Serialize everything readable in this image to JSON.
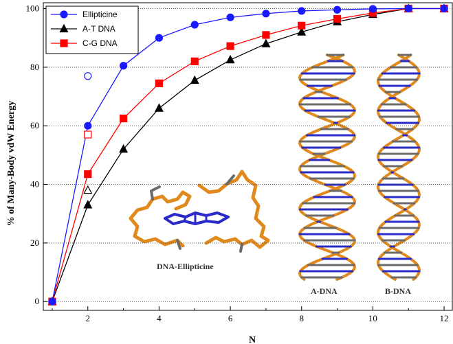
{
  "chart_data": {
    "type": "line",
    "title": "",
    "xlabel": "N",
    "ylabel": "% of Many-Body vdW Energy",
    "xlim": [
      0.75,
      12.25
    ],
    "ylim": [
      -3,
      102
    ],
    "xticks": [
      2,
      4,
      6,
      8,
      10,
      12
    ],
    "yticks": [
      0,
      20,
      40,
      60,
      80,
      100
    ],
    "grid": "horizontal dotted",
    "legend_position": "top-left",
    "x": [
      1,
      2,
      3,
      4,
      5,
      6,
      7,
      8,
      9,
      10,
      11,
      12
    ],
    "series": [
      {
        "name": "Ellipticine",
        "color": "#1a1aff",
        "marker": "circle",
        "values": [
          0,
          60,
          80.5,
          90,
          94.5,
          97,
          98.3,
          99.2,
          99.6,
          99.9,
          100,
          100
        ]
      },
      {
        "name": "A-T DNA",
        "color": "#000000",
        "marker": "triangle",
        "values": [
          0,
          33,
          52,
          66,
          75.5,
          82.5,
          88,
          92,
          95.5,
          98,
          100,
          100
        ]
      },
      {
        "name": "C-G DNA",
        "color": "#ff0000",
        "marker": "square",
        "values": [
          0,
          43.5,
          62.5,
          74.5,
          82,
          87.2,
          91,
          94.2,
          96.5,
          98.5,
          100,
          100
        ]
      }
    ],
    "open_markers": [
      {
        "series": "Ellipticine",
        "x": 2,
        "y": 77
      },
      {
        "series": "C-G DNA",
        "x": 2,
        "y": 57
      },
      {
        "series": "A-T DNA",
        "x": 2,
        "y": 38
      }
    ],
    "annotations": [
      "DNA-Ellipticine",
      "A-DNA",
      "B-DNA"
    ]
  },
  "colors": {
    "molecule_orange": "#e08a1e",
    "molecule_gray": "#6b6b6b",
    "molecule_blue": "#2a2ac8"
  }
}
